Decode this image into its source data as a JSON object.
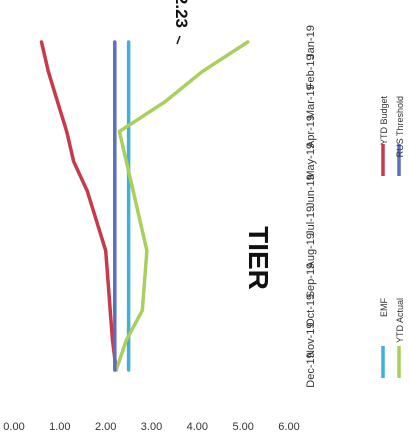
{
  "chart_data": {
    "type": "line",
    "title": "TIER",
    "categories": [
      "Jan-19",
      "Feb-19",
      "Mar-19",
      "Apr-19",
      "May-19",
      "Jun-19",
      "Jul-19",
      "Aug-19",
      "Sep-19",
      "Oct-19",
      "Nov-19",
      "Dec-19"
    ],
    "ylim": [
      0,
      6
    ],
    "yticks": [
      "0.00",
      "1.00",
      "2.00",
      "3.00",
      "4.00",
      "5.00",
      "6.00"
    ],
    "series": [
      {
        "name": "EMF",
        "color": "#3fb1d6",
        "values": [
          2.5,
          2.5,
          2.5,
          2.5,
          2.5,
          2.5,
          2.5,
          2.5,
          2.5,
          2.5,
          2.5,
          2.5
        ]
      },
      {
        "name": "YTD Budget",
        "color": "#c8394c",
        "values": [
          0.6,
          0.75,
          0.95,
          1.15,
          1.3,
          1.6,
          1.8,
          2.0,
          2.05,
          2.1,
          2.15,
          2.23
        ]
      },
      {
        "name": "YTD Actual",
        "color": "#a8d05a",
        "values": [
          5.1,
          4.1,
          3.3,
          2.3,
          2.45,
          2.6,
          2.75,
          2.9,
          2.85,
          2.8,
          2.45,
          2.23
        ]
      },
      {
        "name": "RUS Threshold",
        "color": "#5b6fbf",
        "values": [
          2.2,
          2.2,
          2.2,
          2.2,
          2.2,
          2.2,
          2.2,
          2.2,
          2.2,
          2.2,
          2.2,
          2.2
        ]
      }
    ],
    "annotation": "2.23",
    "legend_position": "bottom"
  }
}
